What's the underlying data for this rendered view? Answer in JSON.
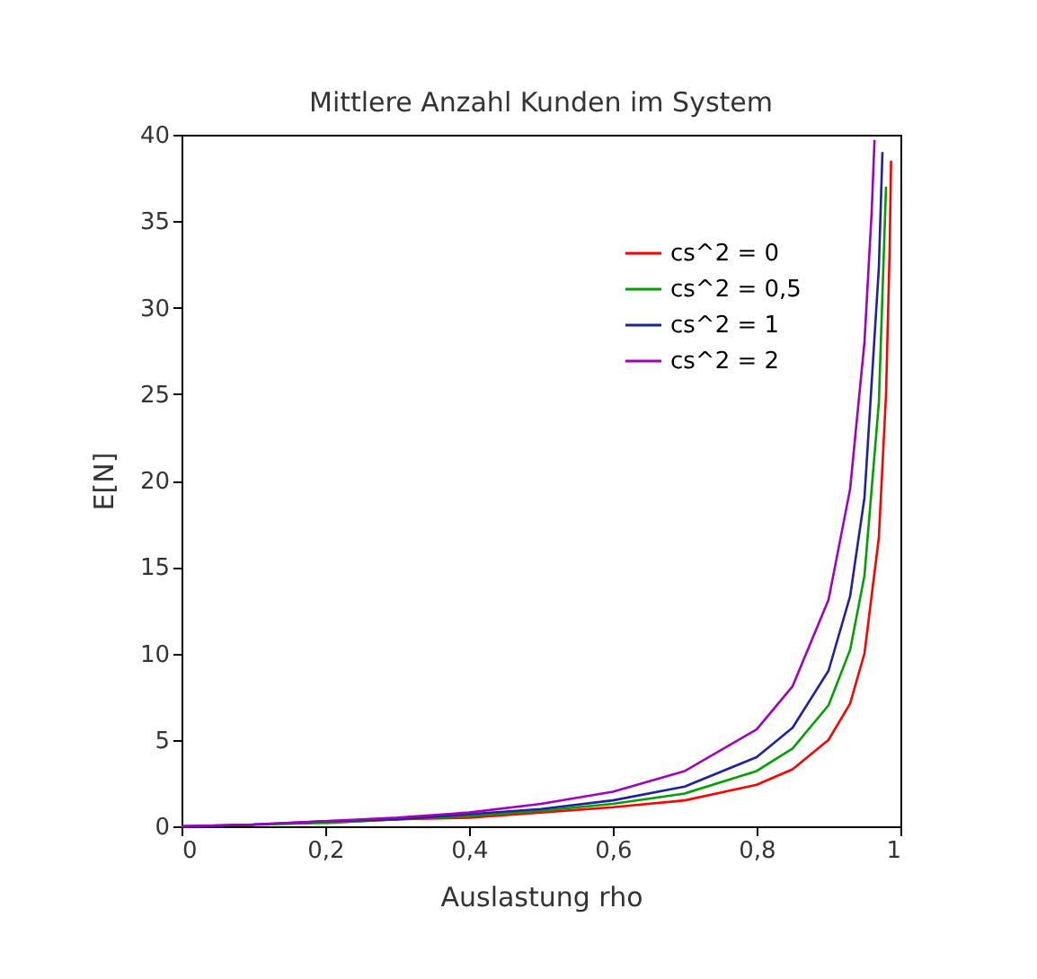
{
  "chart_data": {
    "type": "line",
    "title": "Mittlere Anzahl Kunden im System",
    "xlabel": "Auslastung rho",
    "ylabel": "E[N]",
    "xlim": [
      0,
      1
    ],
    "ylim": [
      0,
      40
    ],
    "xticks": [
      0,
      {
        "value": 0.2,
        "label": "0,2"
      },
      {
        "value": 0.4,
        "label": "0,4"
      },
      {
        "value": 0.6,
        "label": "0,6"
      },
      {
        "value": 0.8,
        "label": "0,8"
      },
      1
    ],
    "yticks": [
      0,
      5,
      10,
      15,
      20,
      25,
      30,
      35,
      40
    ],
    "grid": false,
    "legend": "top right",
    "marker": "none",
    "line_style": "solid",
    "series": [
      {
        "name": "cs^2 = 0",
        "color": "#ff0000",
        "x": [
          0.2,
          0.3,
          0.4,
          0.5,
          0.6,
          0.7,
          0.8,
          0.85,
          0.9,
          0.93,
          0.95,
          0.97,
          0.98,
          0.985,
          0.987
        ],
        "values": [
          0.2,
          0.4,
          0.5,
          0.8,
          1.1,
          1.5,
          2.4,
          3.3,
          5.0,
          7.1,
          10.0,
          16.7,
          25.0,
          33.3,
          38.5
        ]
      },
      {
        "name": "cs^2 = 0,5",
        "color": "#00a000",
        "x": [
          0,
          0.1,
          0.2,
          0.3,
          0.4,
          0.5,
          0.6,
          0.7,
          0.8,
          0.85,
          0.9,
          0.93,
          0.95,
          0.97,
          0.98
        ],
        "values": [
          0,
          0.1,
          0.2,
          0.4,
          0.6,
          0.9,
          1.3,
          1.9,
          3.2,
          4.5,
          7.0,
          10.2,
          14.5,
          24.5,
          37.0
        ]
      },
      {
        "name": "cs^2 = 1",
        "color": "#2020a0",
        "x": [
          0,
          0.1,
          0.2,
          0.3,
          0.4,
          0.5,
          0.6,
          0.7,
          0.8,
          0.85,
          0.9,
          0.93,
          0.95,
          0.97,
          0.975
        ],
        "values": [
          0,
          0.1,
          0.3,
          0.4,
          0.7,
          1.0,
          1.5,
          2.3,
          4.0,
          5.7,
          9.0,
          13.3,
          19.0,
          32.3,
          39.0
        ]
      },
      {
        "name": "cs^2 = 2",
        "color": "#a000c0",
        "x": [
          0,
          0.1,
          0.2,
          0.3,
          0.4,
          0.5,
          0.6,
          0.7,
          0.8,
          0.85,
          0.9,
          0.93,
          0.95,
          0.96,
          0.964
        ],
        "values": [
          0,
          0.1,
          0.3,
          0.5,
          0.8,
          1.3,
          2.0,
          3.2,
          5.6,
          8.1,
          13.1,
          19.5,
          28.0,
          35.5,
          39.7
        ]
      }
    ]
  }
}
